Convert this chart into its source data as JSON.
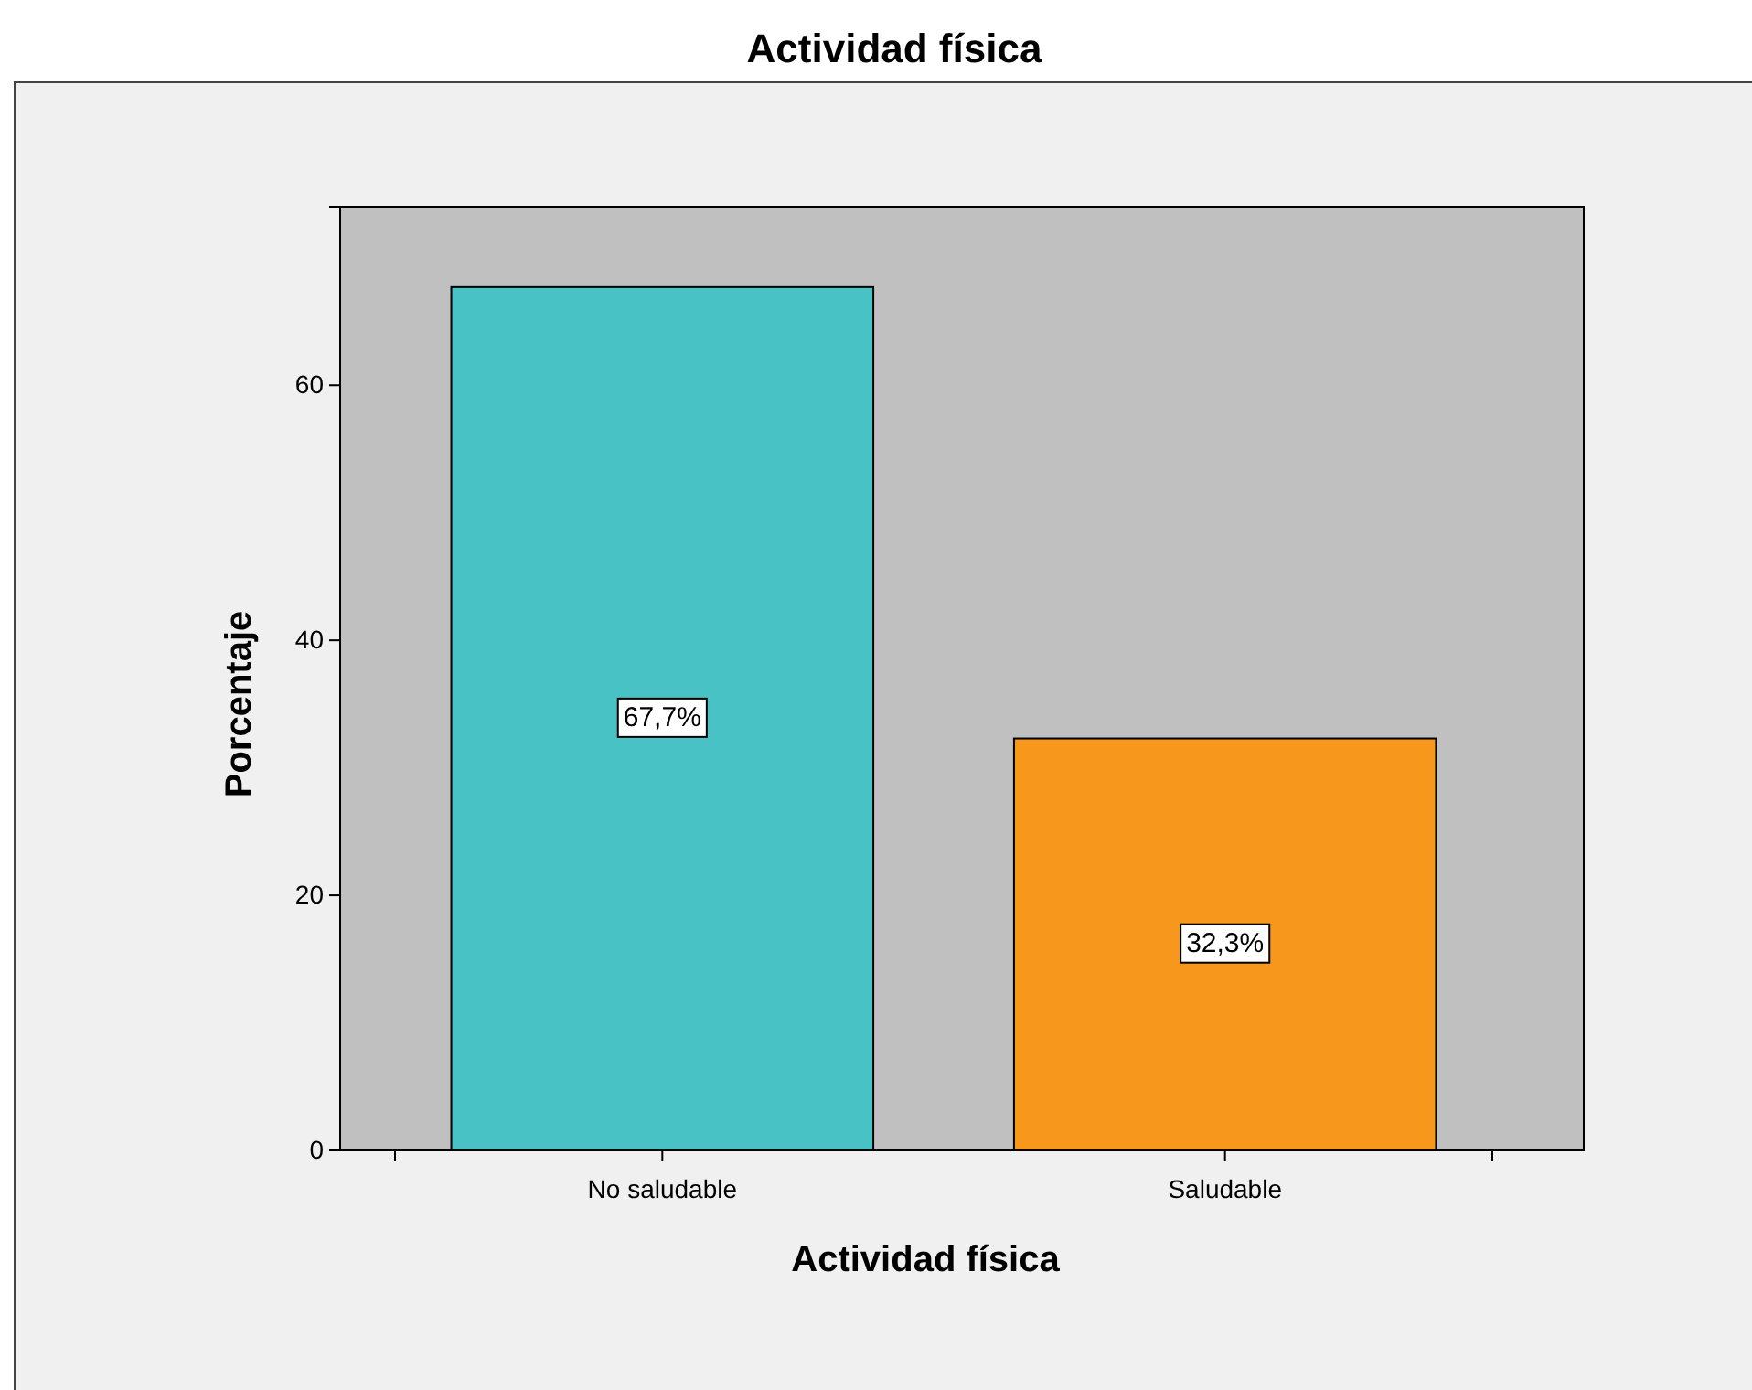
{
  "chart_data": {
    "type": "bar",
    "title": "Actividad física",
    "xlabel": "Actividad física",
    "ylabel": "Porcentaje",
    "categories": [
      "No saludable",
      "Saludable"
    ],
    "values": [
      67.7,
      32.3
    ],
    "colors": [
      "#48c2c5",
      "#f7981d"
    ],
    "value_labels": [
      "67,7%",
      "32,3%"
    ],
    "ylim": [
      0,
      74
    ],
    "yticks": [
      0,
      20,
      40,
      60
    ]
  }
}
